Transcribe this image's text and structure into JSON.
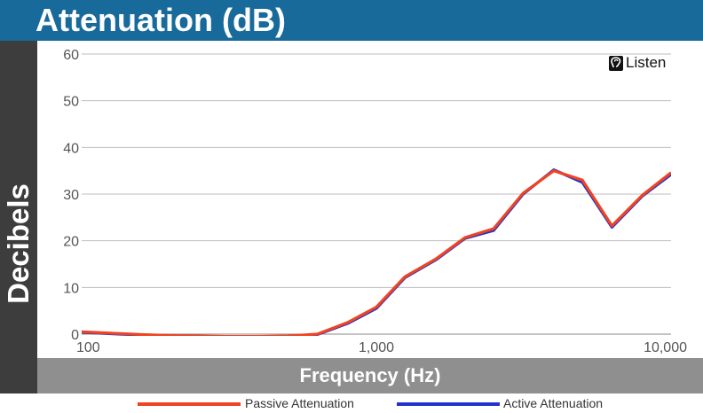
{
  "header": {
    "title": "Attenuation (dB)"
  },
  "logo": {
    "text": "Listen"
  },
  "chart_data": {
    "type": "line",
    "ylabel": "Decibels",
    "xlabel": "Frequency (Hz)",
    "xscale": "log",
    "xlim": [
      100,
      10000
    ],
    "ylim": [
      0,
      60
    ],
    "yticks": [
      0,
      10,
      20,
      30,
      40,
      50,
      60
    ],
    "xticks": [
      100,
      1000,
      10000
    ],
    "xtick_labels": [
      "100",
      "1,000",
      "10,000"
    ],
    "grid": "horizontal",
    "legend_position": "bottom",
    "x": [
      100,
      125,
      160,
      200,
      250,
      315,
      400,
      500,
      630,
      800,
      1000,
      1250,
      1600,
      2000,
      2500,
      3150,
      4000,
      5000,
      6300,
      8000,
      10000
    ],
    "series": [
      {
        "name": "Passive Attenuation",
        "color": "#ee4422",
        "values": [
          0.5,
          0.2,
          -0.1,
          -0.3,
          -0.4,
          -0.5,
          -0.5,
          -0.4,
          0,
          2.5,
          5.8,
          12.3,
          16.2,
          20.7,
          22.6,
          30.2,
          35.0,
          33.0,
          23.2,
          29.8,
          34.6
        ]
      },
      {
        "name": "Active Attenuation",
        "color": "#2233cc",
        "values": [
          0.4,
          0.1,
          -0.2,
          -0.4,
          -0.5,
          -0.6,
          -0.6,
          -0.5,
          -0.1,
          2.3,
          5.5,
          12.1,
          16.0,
          20.5,
          22.2,
          30.0,
          35.2,
          32.5,
          22.9,
          29.6,
          34.2
        ]
      }
    ]
  }
}
